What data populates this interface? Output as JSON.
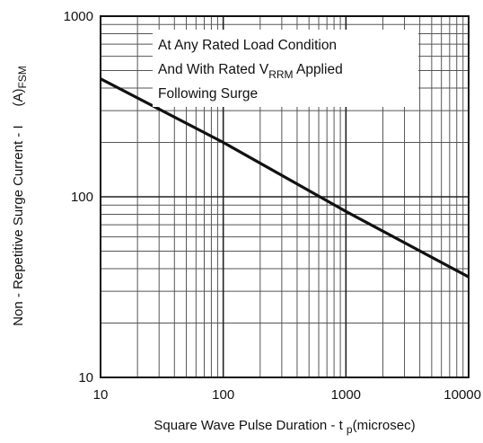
{
  "chart_data": {
    "type": "line",
    "title": "",
    "xlabel": {
      "main": "Square Wave Pulse Duration - t ",
      "sub": "p",
      "unit": "(microsec)"
    },
    "ylabel": {
      "main": "Non - Repetitive Surge Current - I",
      "spacer": "     ",
      "unit": "(A)",
      "sub": "FSM"
    },
    "x_scale": "log",
    "y_scale": "log",
    "xlim": [
      10,
      10000
    ],
    "ylim": [
      10,
      1000
    ],
    "x_ticks": [
      "10",
      "100",
      "1000",
      "10000"
    ],
    "y_ticks": [
      "10",
      "100",
      "1000"
    ],
    "grid": true,
    "series": [
      {
        "x": [
          10,
          100,
          1000,
          10000
        ],
        "y": [
          450,
          200,
          83,
          36
        ]
      }
    ],
    "annotations": {
      "line1": "At Any Rated Load Condition",
      "line2_main": "And With Rated V",
      "line2_sub": "RRM",
      "line2_end": " Applied",
      "line3": "Following Surge"
    }
  }
}
